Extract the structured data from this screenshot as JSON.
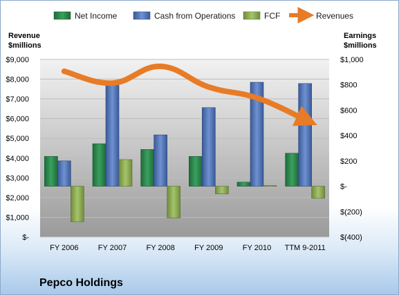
{
  "company": "Pepco Holdings",
  "left_axis_title": [
    "Revenue",
    "$millions"
  ],
  "right_axis_title": [
    "Earnings",
    "$millions"
  ],
  "colors": {
    "net_income": "#2e8b4f",
    "cash_from_operations": "#4f72b8",
    "fcf": "#8fae55",
    "revenues": "#e87b26"
  },
  "chart_data": {
    "type": "bar",
    "categories": [
      "FY 2006",
      "FY 2007",
      "FY 2008",
      "FY 2009",
      "FY 2010",
      "TTM 9-2011"
    ],
    "series": [
      {
        "name": "Net Income",
        "axis": "right",
        "values": [
          235,
          335,
          290,
          235,
          32,
          260
        ]
      },
      {
        "name": "Cash from Operations",
        "axis": "right",
        "values": [
          200,
          815,
          405,
          620,
          820,
          810
        ]
      },
      {
        "name": "FCF",
        "axis": "right",
        "values": [
          -280,
          210,
          -250,
          -60,
          5,
          -95
        ]
      },
      {
        "name": "Revenues",
        "type": "line",
        "axis": "left",
        "values": [
          8400,
          7800,
          8650,
          7600,
          7050,
          5950
        ]
      }
    ],
    "left_axis": {
      "ylim": [
        0,
        9000
      ],
      "ticks": [
        "$-",
        "$1,000",
        "$2,000",
        "$3,000",
        "$4,000",
        "$5,000",
        "$6,000",
        "$7,000",
        "$8,000",
        "$9,000"
      ]
    },
    "right_axis": {
      "ylim": [
        -400,
        1000
      ],
      "ticks": [
        "$(400)",
        "$(200)",
        "$-",
        "$200",
        "$400",
        "$600",
        "$800",
        "$1,000"
      ]
    },
    "legend": {
      "position": "top"
    }
  }
}
